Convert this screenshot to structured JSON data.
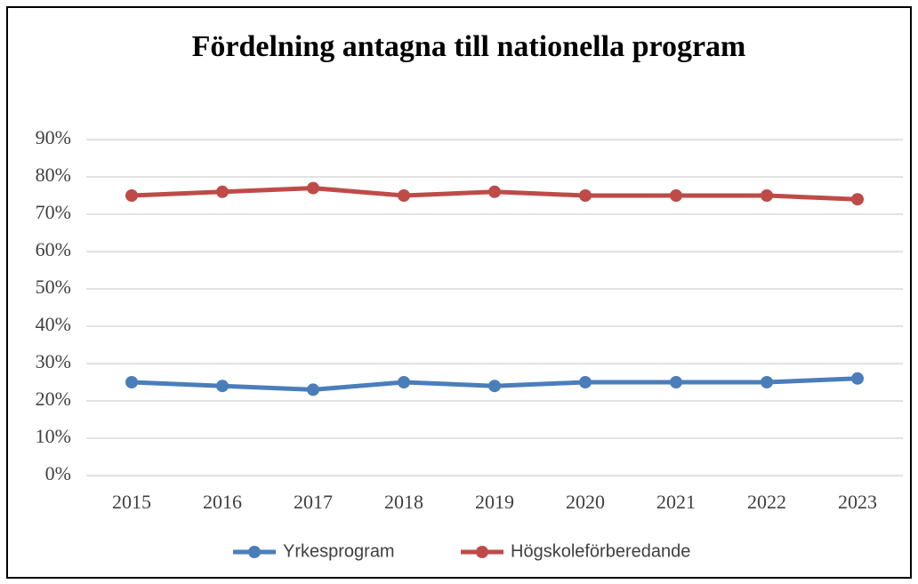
{
  "chart_data": {
    "type": "line",
    "title": "Fördelning antagna till nationella program",
    "categories": [
      "2015",
      "2016",
      "2017",
      "2018",
      "2019",
      "2020",
      "2021",
      "2022",
      "2023"
    ],
    "series": [
      {
        "name": "Yrkesprogram",
        "color": "#4a7ebb",
        "values": [
          25,
          24,
          23,
          25,
          24,
          25,
          25,
          25,
          26
        ]
      },
      {
        "name": "Högskoleförberedande",
        "color": "#be4b48",
        "values": [
          75,
          76,
          77,
          75,
          76,
          75,
          75,
          75,
          74
        ]
      }
    ],
    "ylim": [
      0,
      90
    ],
    "yticks": [
      {
        "value": 0,
        "label": "0%"
      },
      {
        "value": 10,
        "label": "10%"
      },
      {
        "value": 20,
        "label": "20%"
      },
      {
        "value": 30,
        "label": "30%"
      },
      {
        "value": 40,
        "label": "40%"
      },
      {
        "value": 50,
        "label": "50%"
      },
      {
        "value": 60,
        "label": "60%"
      },
      {
        "value": 70,
        "label": "70%"
      },
      {
        "value": 80,
        "label": "80%"
      },
      {
        "value": 90,
        "label": "90%"
      }
    ],
    "grid": true,
    "legend": "bottom"
  }
}
